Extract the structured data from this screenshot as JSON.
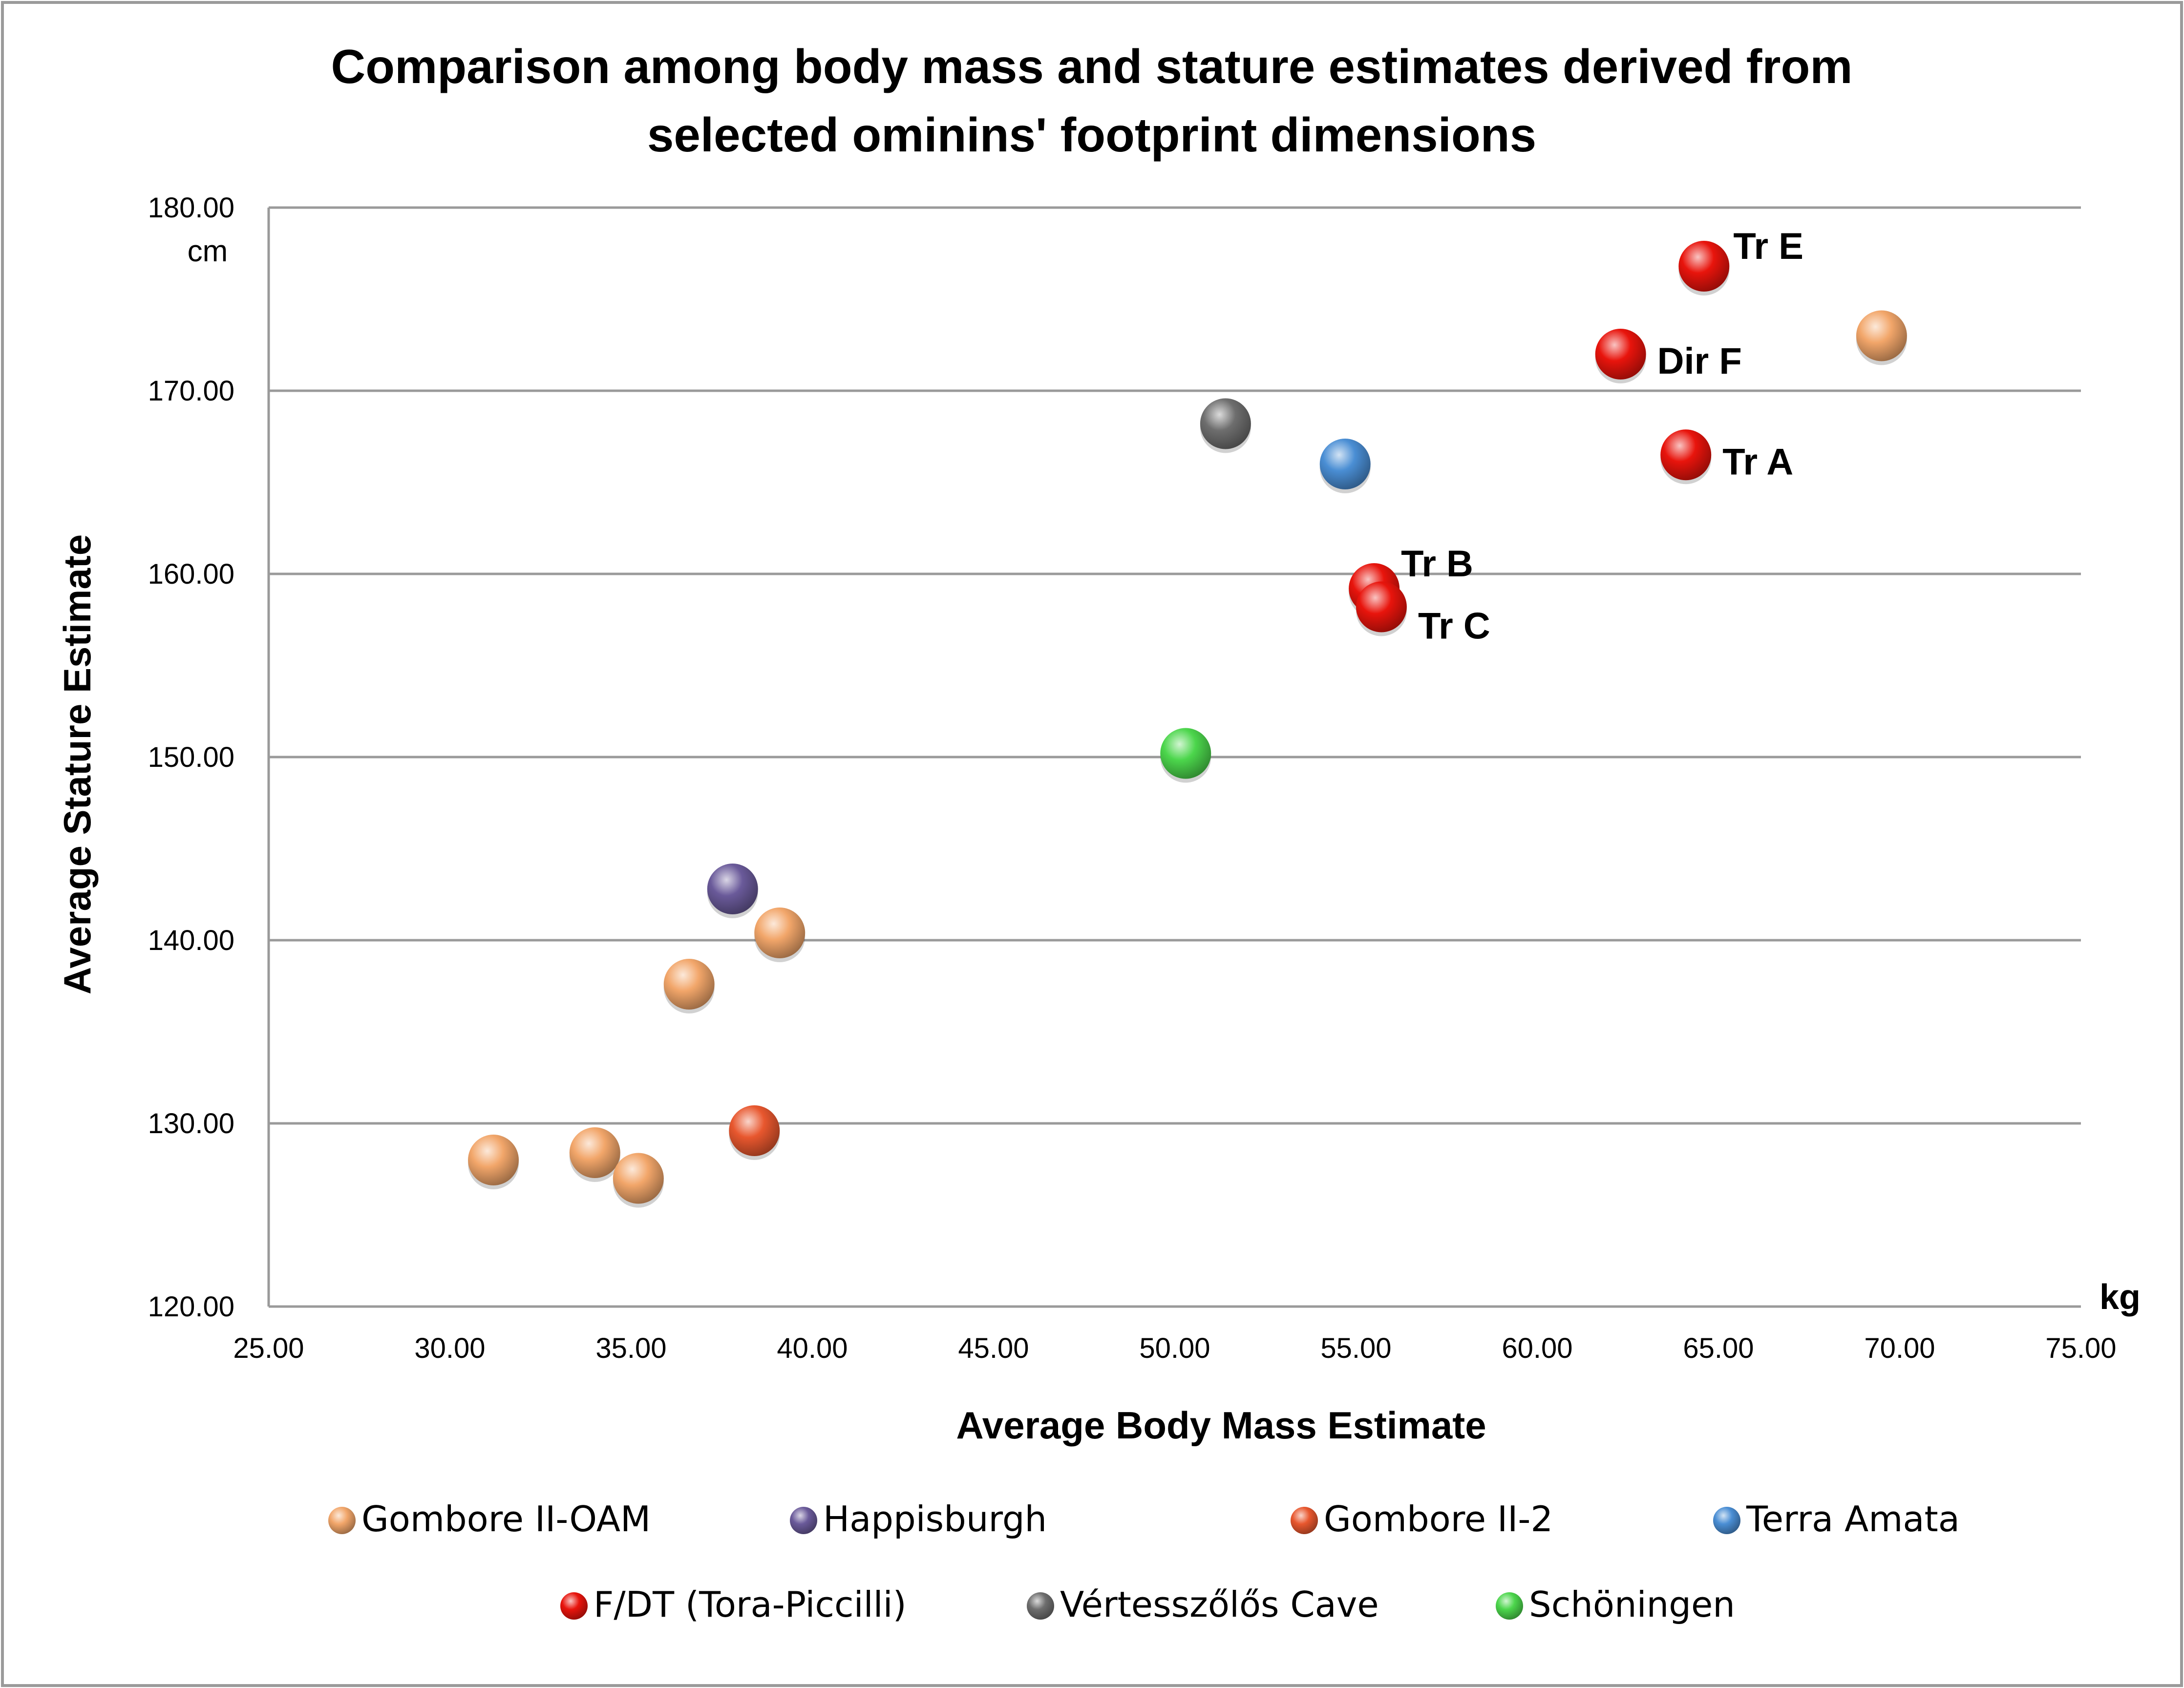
{
  "chart_data": {
    "type": "scatter",
    "title_lines": [
      "Comparison among body mass and stature estimates derived from",
      "selected ominins' footprint dimensions"
    ],
    "xlabel": "Average Body Mass Estimate",
    "ylabel": "Average Stature Estimate",
    "x_unit": "kg",
    "y_unit": "cm",
    "xlim": [
      25,
      75
    ],
    "ylim": [
      120,
      180
    ],
    "x_ticks": [
      25,
      30,
      35,
      40,
      45,
      50,
      55,
      60,
      65,
      70,
      75
    ],
    "y_ticks": [
      120,
      130,
      140,
      150,
      160,
      170,
      180
    ],
    "x_tick_labels": [
      "25.00",
      "30.00",
      "35.00",
      "40.00",
      "45.00",
      "50.00",
      "55.00",
      "60.00",
      "65.00",
      "70.00",
      "75.00"
    ],
    "y_tick_labels": [
      "120.00",
      "130.00",
      "140.00",
      "150.00",
      "160.00",
      "170.00",
      "180.00"
    ],
    "grid": "horizontal",
    "legend_position": "bottom",
    "series": [
      {
        "name": "Gombore II-OAM",
        "color": "#f2a66a",
        "points": [
          {
            "x": 31.2,
            "y": 128.0
          },
          {
            "x": 34.0,
            "y": 128.4
          },
          {
            "x": 35.2,
            "y": 127.0
          },
          {
            "x": 36.6,
            "y": 137.6
          },
          {
            "x": 39.1,
            "y": 140.4
          },
          {
            "x": 69.5,
            "y": 173.0
          }
        ]
      },
      {
        "name": "Happisburgh",
        "color": "#6a5a9a",
        "points": [
          {
            "x": 37.8,
            "y": 142.8
          }
        ]
      },
      {
        "name": "Gombore II-2",
        "color": "#e8572e",
        "points": [
          {
            "x": 38.4,
            "y": 129.6
          }
        ]
      },
      {
        "name": "Terra Amata",
        "color": "#4a8ed4",
        "points": [
          {
            "x": 54.7,
            "y": 166.0
          }
        ]
      },
      {
        "name": "F/DT (Tora-Piccilli)",
        "color": "#e8140c",
        "points": [
          {
            "x": 64.6,
            "y": 176.8,
            "label": "Tr  E"
          },
          {
            "x": 62.3,
            "y": 172.0,
            "label": "Dir F"
          },
          {
            "x": 64.1,
            "y": 166.5,
            "label": "Tr A"
          },
          {
            "x": 55.5,
            "y": 159.2,
            "label": "Tr B"
          },
          {
            "x": 55.7,
            "y": 158.2,
            "label": "Tr C"
          }
        ]
      },
      {
        "name": "Vértesszőlős Cave",
        "color": "#6e6e6e",
        "points": [
          {
            "x": 51.4,
            "y": 168.2
          }
        ]
      },
      {
        "name": "Schöningen",
        "color": "#4cd64c",
        "points": [
          {
            "x": 50.3,
            "y": 150.2
          }
        ]
      }
    ]
  }
}
